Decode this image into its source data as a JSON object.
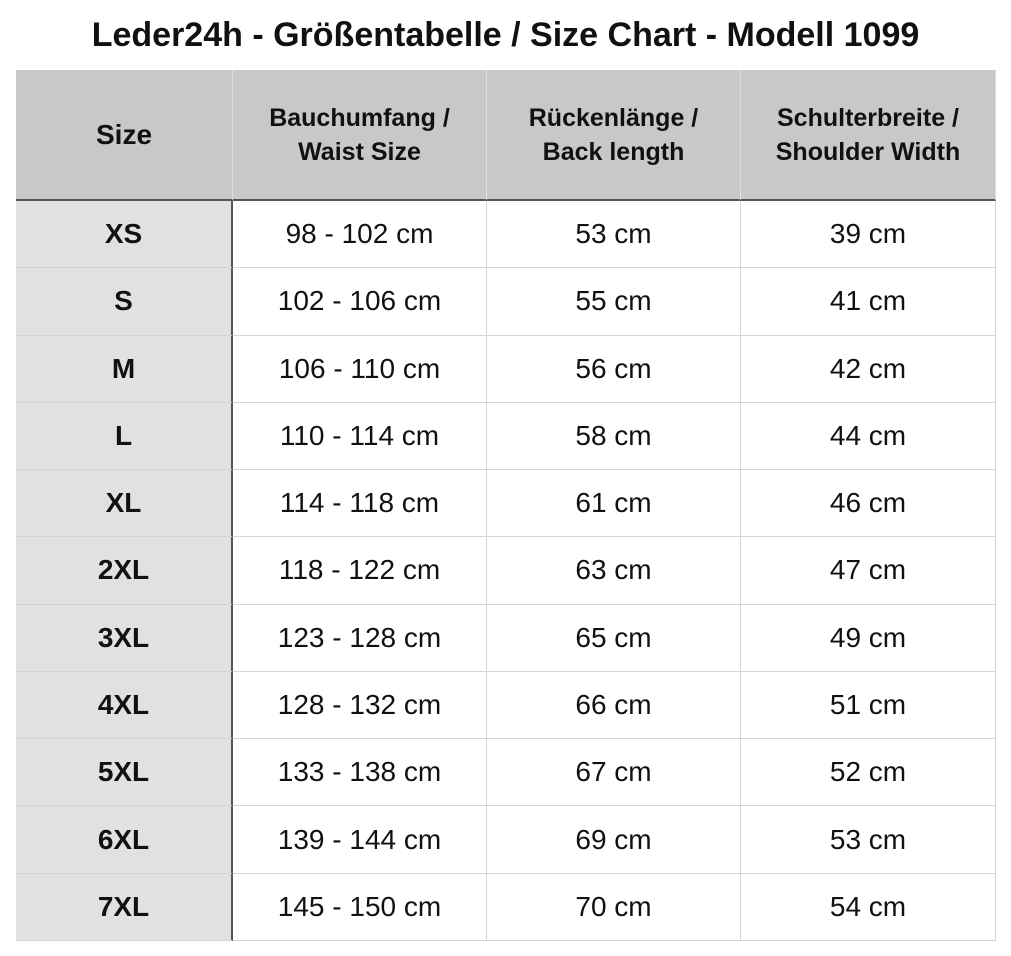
{
  "title": "Leder24h - Größentabelle / Size Chart - Modell 1099",
  "table": {
    "header": [
      [
        "Size"
      ],
      [
        "Bauchumfang /",
        "Waist Size"
      ],
      [
        "Rückenlänge /",
        "Back length"
      ],
      [
        "Schulterbreite /",
        "Shoulder Width"
      ]
    ],
    "rows": [
      [
        "XS",
        "98 - 102 cm",
        "53 cm",
        "39 cm"
      ],
      [
        "S",
        "102 - 106 cm",
        "55 cm",
        "41 cm"
      ],
      [
        "M",
        "106 - 110 cm",
        "56 cm",
        "42 cm"
      ],
      [
        "L",
        "110 - 114 cm",
        "58 cm",
        "44 cm"
      ],
      [
        "XL",
        "114 - 118 cm",
        "61 cm",
        "46 cm"
      ],
      [
        "2XL",
        "118 - 122 cm",
        "63 cm",
        "47 cm"
      ],
      [
        "3XL",
        "123 - 128 cm",
        "65 cm",
        "49 cm"
      ],
      [
        "4XL",
        "128 - 132 cm",
        "66 cm",
        "51 cm"
      ],
      [
        "5XL",
        "133 - 138 cm",
        "67 cm",
        "52 cm"
      ],
      [
        "6XL",
        "139 - 144 cm",
        "69 cm",
        "53 cm"
      ],
      [
        "7XL",
        "145 - 150 cm",
        "70 cm",
        "54 cm"
      ]
    ]
  }
}
